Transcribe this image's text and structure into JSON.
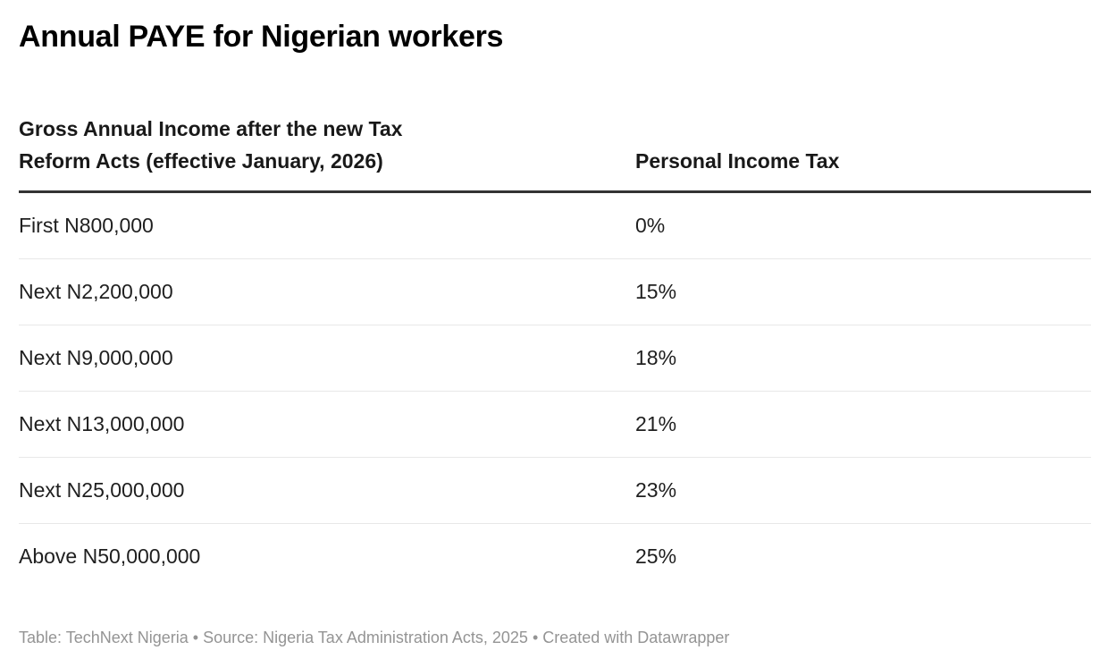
{
  "title": "Annual PAYE for Nigerian workers",
  "table": {
    "col1_header": "Gross Annual Income after the new Tax\nReform Acts (effective January, 2026)",
    "col2_header": "Personal Income Tax",
    "rows": [
      {
        "income": "First N800,000",
        "tax": "0%"
      },
      {
        "income": "Next N2,200,000",
        "tax": "15%"
      },
      {
        "income": "Next N9,000,000",
        "tax": "18%"
      },
      {
        "income": "Next N13,000,000",
        "tax": "21%"
      },
      {
        "income": "Next N25,000,000",
        "tax": "23%"
      },
      {
        "income": "Above N50,000,000",
        "tax": "25%"
      }
    ]
  },
  "footer": {
    "parts": [
      "Table: TechNext Nigeria",
      "Source: Nigeria Tax Administration Acts, 2025",
      "Created with Datawrapper"
    ],
    "separator": " • "
  },
  "colors": {
    "title_text": "#000000",
    "header_text": "#191919",
    "body_text": "#1f1f1f",
    "header_rule": "#333333",
    "row_separator": "#e8e8e8",
    "footer_text": "#949494",
    "background": "#ffffff"
  },
  "chart_data": {
    "type": "table",
    "title": "Annual PAYE for Nigerian workers",
    "columns": [
      "Gross Annual Income after the new Tax Reform Acts (effective January, 2026)",
      "Personal Income Tax"
    ],
    "rows": [
      [
        "First N800,000",
        "0%"
      ],
      [
        "Next N2,200,000",
        "15%"
      ],
      [
        "Next N9,000,000",
        "18%"
      ],
      [
        "Next N13,000,000",
        "21%"
      ],
      [
        "Next N25,000,000",
        "23%"
      ],
      [
        "Above N50,000,000",
        "25%"
      ]
    ],
    "footer": "Table: TechNext Nigeria • Source: Nigeria Tax Administration Acts, 2025 • Created with Datawrapper"
  }
}
